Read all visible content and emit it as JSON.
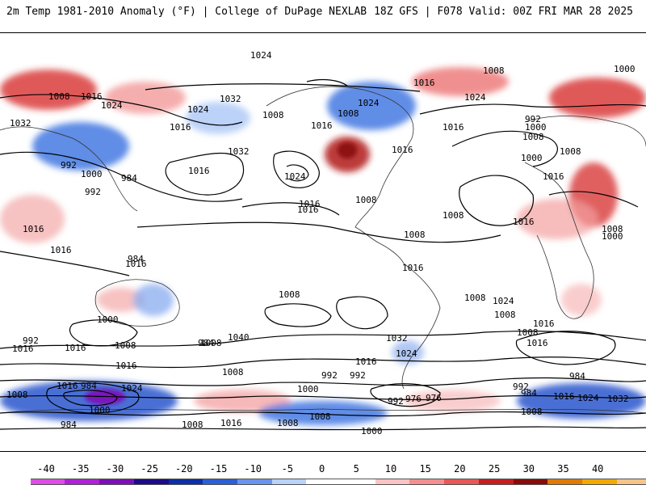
{
  "header": {
    "title_left": "2m Temp 1981-2010 Anomaly (°F) | College of DuPage NEXLAB",
    "title_right": "18Z GFS | F078 Valid: 00Z FRI MAR 28 2025"
  },
  "colorbar": {
    "labels": [
      "-40",
      "-35",
      "-30",
      "-25",
      "-20",
      "-15",
      "-10",
      "-5",
      "0",
      "5",
      "10",
      "15",
      "20",
      "25",
      "30",
      "35",
      "40"
    ],
    "colors": [
      "#e04be8",
      "#b21fd9",
      "#7d0fb8",
      "#1d0a8a",
      "#0a2fa8",
      "#2a5fd8",
      "#6a95ee",
      "#b9d2fa",
      "#ffffff",
      "#ffffff",
      "#fbc4c4",
      "#f38f8f",
      "#e95757",
      "#c81d1d",
      "#8a0a0a",
      "#e07a00",
      "#f3a800",
      "#f5c48a"
    ]
  },
  "map": {
    "isobar_labels": [
      "1024",
      "1016",
      "1016",
      "1000",
      "1008",
      "1016",
      "1024",
      "1032",
      "1024",
      "1016",
      "1016",
      "1032",
      "1008",
      "1016",
      "1032",
      "1016",
      "1016",
      "1024",
      "1024",
      "1008",
      "992",
      "1000",
      "1016",
      "1008",
      "1016",
      "1024",
      "1008",
      "1008",
      "1016",
      "1008",
      "1016",
      "1008",
      "1008",
      "1008",
      "1016",
      "1016",
      "1016",
      "1016",
      "1000",
      "992",
      "984",
      "992",
      "1008",
      "1000",
      "984",
      "1040",
      "1032",
      "1024",
      "1008",
      "1024",
      "1016",
      "1000",
      "1008",
      "1016",
      "992",
      "984",
      "976",
      "992",
      "984",
      "976",
      "992",
      "1008",
      "1016",
      "1024",
      "1032",
      "1000",
      "992",
      "1000",
      "1008",
      "1008",
      "1016",
      "1008",
      "1008",
      "1008",
      "1016",
      "1016",
      "1016",
      "1008",
      "1000",
      "984",
      "1024",
      "1016",
      "984",
      "1008",
      "984",
      "1000",
      "1008",
      "992"
    ]
  }
}
